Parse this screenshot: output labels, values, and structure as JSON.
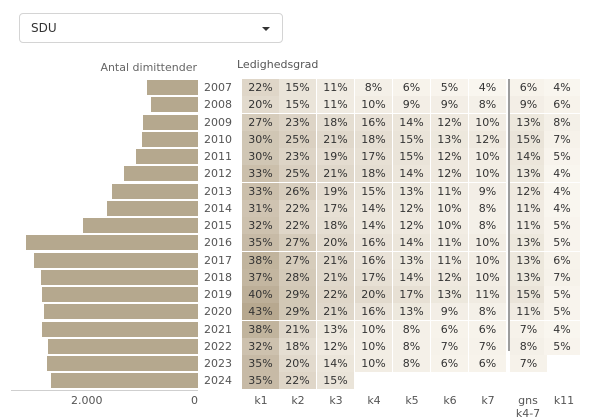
{
  "dropdown": {
    "selected": "SDU"
  },
  "bars_title": "Antal dimittender",
  "grid_title": "Ledighedsgrad",
  "bars_axis_ticks": [
    "2.000",
    "0"
  ],
  "columns": [
    "k1",
    "k2",
    "k3",
    "k4",
    "k5",
    "k6",
    "k7",
    "gns k4-7",
    "k11"
  ],
  "chart_data": [
    {
      "type": "bar",
      "title": "Antal dimittender",
      "orientation": "horizontal-left",
      "categories": [
        "2007",
        "2008",
        "2009",
        "2010",
        "2011",
        "2012",
        "2013",
        "2014",
        "2015",
        "2016",
        "2017",
        "2018",
        "2019",
        "2020",
        "2021",
        "2022",
        "2023",
        "2024"
      ],
      "values": [
        950,
        880,
        1020,
        1050,
        1150,
        1380,
        1600,
        1700,
        2150,
        3200,
        3050,
        2930,
        2900,
        2880,
        2900,
        2800,
        2820,
        2750
      ],
      "xlim": [
        3450,
        0
      ]
    },
    {
      "type": "heatmap",
      "title": "Ledighedsgrad",
      "rows": [
        "2007",
        "2008",
        "2009",
        "2010",
        "2011",
        "2012",
        "2013",
        "2014",
        "2015",
        "2016",
        "2017",
        "2018",
        "2019",
        "2020",
        "2021",
        "2022",
        "2023",
        "2024"
      ],
      "columns": [
        "k1",
        "k2",
        "k3",
        "k4",
        "k5",
        "k6",
        "k7",
        "gns k4-7",
        "k11"
      ],
      "values": [
        [
          22,
          15,
          11,
          8,
          6,
          5,
          4,
          6,
          4
        ],
        [
          20,
          15,
          11,
          10,
          9,
          9,
          8,
          9,
          6
        ],
        [
          27,
          23,
          18,
          16,
          14,
          12,
          10,
          13,
          8
        ],
        [
          30,
          25,
          21,
          18,
          15,
          13,
          12,
          15,
          7
        ],
        [
          30,
          23,
          19,
          17,
          15,
          12,
          10,
          14,
          5
        ],
        [
          33,
          25,
          21,
          18,
          14,
          12,
          10,
          13,
          4
        ],
        [
          33,
          26,
          19,
          15,
          13,
          11,
          9,
          12,
          4
        ],
        [
          31,
          22,
          17,
          14,
          12,
          10,
          8,
          11,
          4
        ],
        [
          32,
          22,
          18,
          14,
          12,
          10,
          8,
          11,
          5
        ],
        [
          35,
          27,
          20,
          16,
          14,
          11,
          10,
          13,
          5
        ],
        [
          38,
          27,
          21,
          16,
          13,
          11,
          10,
          13,
          6
        ],
        [
          37,
          28,
          21,
          17,
          14,
          12,
          10,
          13,
          7
        ],
        [
          40,
          29,
          22,
          20,
          17,
          13,
          11,
          15,
          5
        ],
        [
          43,
          29,
          21,
          16,
          13,
          9,
          8,
          11,
          5
        ],
        [
          38,
          21,
          13,
          10,
          8,
          6,
          6,
          7,
          4
        ],
        [
          32,
          18,
          12,
          10,
          8,
          7,
          7,
          8,
          5
        ],
        [
          35,
          20,
          14,
          10,
          8,
          6,
          6,
          7,
          null
        ],
        [
          35,
          22,
          15,
          null,
          null,
          null,
          null,
          null,
          null
        ]
      ],
      "unit": "%",
      "colors": {
        "low": "#fdfaf4",
        "high": "#b3a389"
      }
    }
  ]
}
